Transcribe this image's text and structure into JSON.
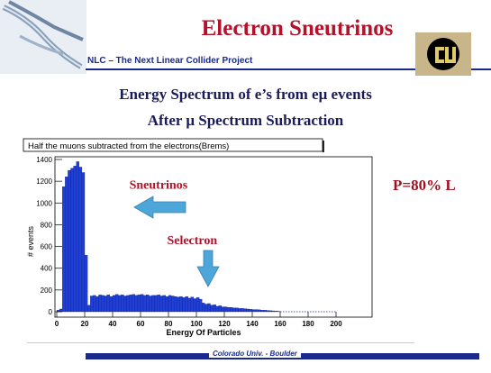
{
  "slide": {
    "title": "Electron Sneutrinos",
    "subtitle": "NLC – The Next Linear Collider Project",
    "heading_line1": "Energy Spectrum of e’s from eμ events",
    "heading_line2": "After μ Spectrum Subtraction",
    "side_label": "P=80% L",
    "footer": "Colorado Univ. - Boulder"
  },
  "colors": {
    "title": "#b3122a",
    "navy": "#1a2a8c",
    "histogram_fill": "#1f3fd6",
    "arrow_fill": "#4da6d9",
    "annotation_text": "#b3122a"
  },
  "chart_data": {
    "type": "bar",
    "title": "Half the muons subtracted from the electrons(Brems)",
    "xlabel": "Energy Of Particles",
    "ylabel": "# events",
    "xlim": [
      0,
      200
    ],
    "ylim": [
      0,
      1400
    ],
    "xticks": [
      0,
      20,
      40,
      60,
      80,
      100,
      120,
      140,
      160,
      180,
      200
    ],
    "yticks": [
      0,
      200,
      400,
      600,
      800,
      1000,
      1200,
      1400
    ],
    "bin_width": 2,
    "bins_x": [
      0,
      2,
      4,
      6,
      8,
      10,
      12,
      14,
      16,
      18,
      20,
      22,
      24,
      26,
      28,
      30,
      32,
      34,
      36,
      38,
      40,
      42,
      44,
      46,
      48,
      50,
      52,
      54,
      56,
      58,
      60,
      62,
      64,
      66,
      68,
      70,
      72,
      74,
      76,
      78,
      80,
      82,
      84,
      86,
      88,
      90,
      92,
      94,
      96,
      98,
      100,
      102,
      104,
      106,
      108,
      110,
      112,
      114,
      116,
      118,
      120,
      122,
      124,
      126,
      128,
      130,
      132,
      134,
      136,
      138,
      140,
      142,
      144,
      146,
      148,
      150,
      152,
      154,
      156,
      158
    ],
    "values": [
      15,
      25,
      1150,
      1240,
      1300,
      1320,
      1340,
      1380,
      1330,
      1280,
      520,
      60,
      145,
      150,
      140,
      155,
      150,
      145,
      155,
      140,
      150,
      160,
      150,
      155,
      145,
      150,
      155,
      160,
      150,
      155,
      160,
      150,
      155,
      145,
      150,
      150,
      155,
      145,
      150,
      140,
      150,
      145,
      140,
      135,
      140,
      130,
      140,
      125,
      135,
      120,
      130,
      115,
      80,
      70,
      75,
      60,
      65,
      50,
      55,
      45,
      45,
      40,
      40,
      35,
      35,
      30,
      30,
      28,
      25,
      22,
      20,
      20,
      18,
      15,
      15,
      12,
      10,
      8,
      6,
      4
    ],
    "grid": false,
    "annotations": [
      {
        "text": "Sneutrinos",
        "x": 52,
        "y": 1130
      },
      {
        "text": "Selectron",
        "x": 79,
        "y": 620
      }
    ]
  }
}
